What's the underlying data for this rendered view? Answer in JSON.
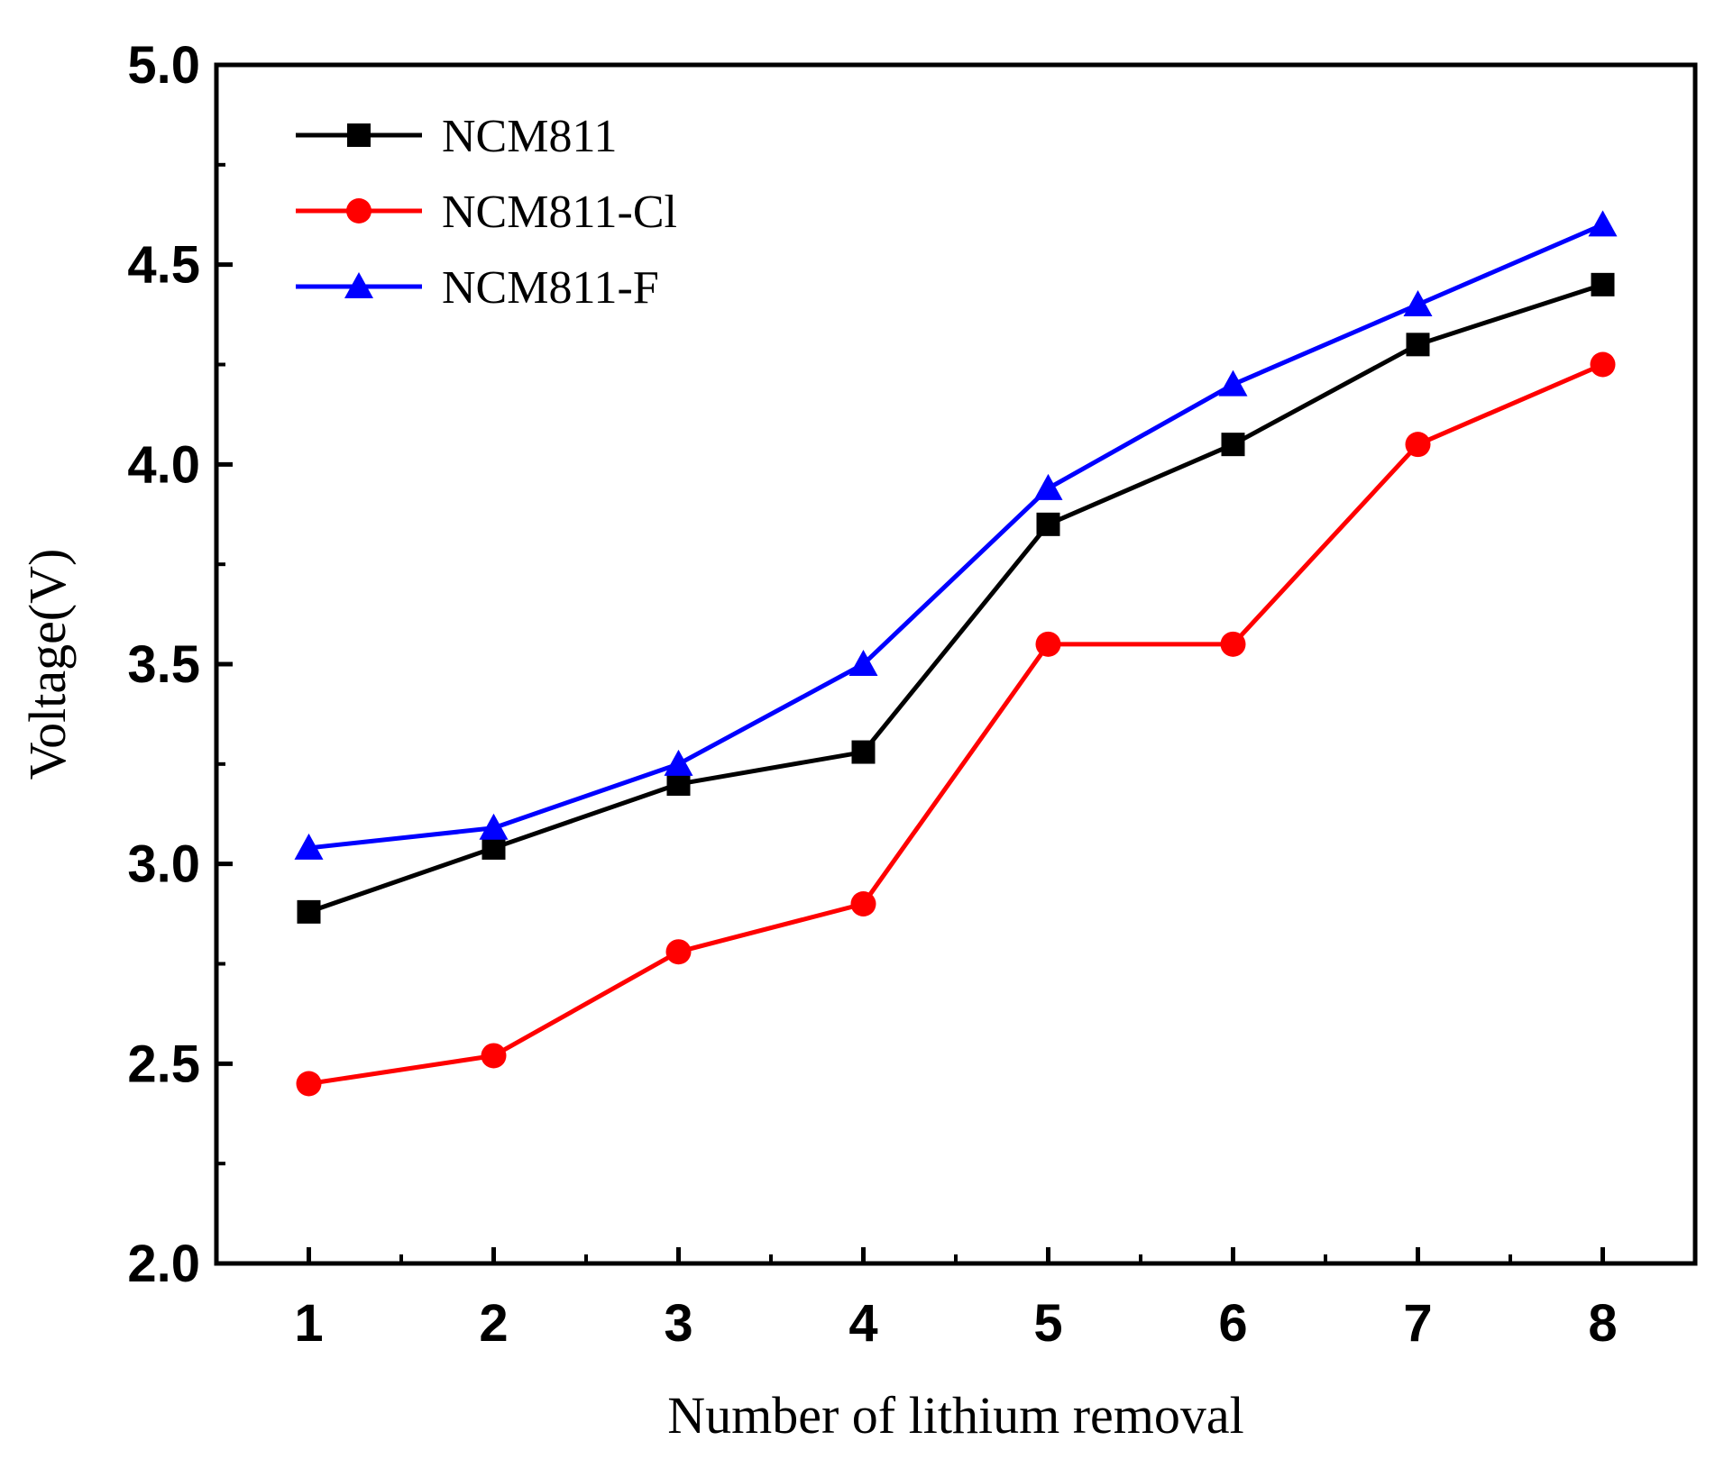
{
  "chart_data": {
    "type": "line",
    "title": "",
    "xlabel": "Number of lithium removal",
    "ylabel": "Voltage(V)",
    "x": [
      1,
      2,
      3,
      4,
      5,
      6,
      7,
      8
    ],
    "xticks": [
      1,
      2,
      3,
      4,
      5,
      6,
      7,
      8
    ],
    "xlim": [
      0.5,
      8.5
    ],
    "ylim": [
      2.0,
      5.0
    ],
    "yticks": [
      2.0,
      2.5,
      3.0,
      3.5,
      4.0,
      4.5,
      5.0
    ],
    "ytick_labels": [
      "2.0",
      "2.5",
      "3.0",
      "3.5",
      "4.0",
      "4.5",
      "5.0"
    ],
    "grid": false,
    "legend_position": "top-left",
    "series": [
      {
        "name": "NCM811",
        "color": "#000000",
        "marker": "square",
        "values": [
          2.88,
          3.04,
          3.2,
          3.28,
          3.85,
          4.05,
          4.3,
          4.45
        ]
      },
      {
        "name": "NCM811-Cl",
        "color": "#ff0000",
        "marker": "circle",
        "values": [
          2.45,
          2.52,
          2.78,
          2.9,
          3.55,
          3.55,
          4.05,
          4.25
        ]
      },
      {
        "name": "NCM811-F",
        "color": "#0000ff",
        "marker": "triangle",
        "values": [
          3.04,
          3.09,
          3.25,
          3.5,
          3.94,
          4.2,
          4.4,
          4.6
        ]
      }
    ]
  }
}
